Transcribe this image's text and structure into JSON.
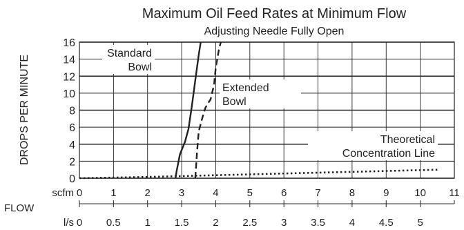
{
  "chart_data": {
    "type": "line",
    "title": "Maximum Oil Feed Rates at Minimum Flow",
    "subtitle": "Adjusting Needle Fully Open",
    "ylabel": "DROPS PER MINUTE",
    "xlabel": "FLOW",
    "ylim": [
      0,
      16
    ],
    "xlim": [
      0,
      11
    ],
    "y_ticks": [
      "0",
      "2",
      "4",
      "6",
      "8",
      "10",
      "12",
      "14",
      "16"
    ],
    "x_scfm_label": "scfm",
    "x_scfm_ticks": [
      "0",
      "1",
      "2",
      "3",
      "4",
      "5",
      "6",
      "7",
      "8",
      "9",
      "10",
      "11"
    ],
    "x_ls_label": "l/s",
    "x_ls_ticks": [
      "0",
      "0.5",
      "1",
      "1.5",
      "2",
      "2.5",
      "3",
      "3.5",
      "4",
      "4.5",
      "5"
    ],
    "grid": true,
    "series": [
      {
        "name": "Standard Bowl",
        "label_lines": [
          "Standard",
          "Bowl"
        ],
        "style": "solid",
        "color": "#222222",
        "points": [
          [
            2.82,
            0
          ],
          [
            2.85,
            0.8
          ],
          [
            2.95,
            2.8
          ],
          [
            3.1,
            4.3
          ],
          [
            3.2,
            5.8
          ],
          [
            3.3,
            8.5
          ],
          [
            3.4,
            11.5
          ],
          [
            3.5,
            14.5
          ],
          [
            3.56,
            16
          ]
        ]
      },
      {
        "name": "Extended Bowl",
        "label_lines": [
          "Extended",
          "Bowl"
        ],
        "style": "dashed",
        "color": "#222222",
        "points": [
          [
            3.4,
            0
          ],
          [
            3.45,
            3.0
          ],
          [
            3.5,
            5.5
          ],
          [
            3.6,
            7.0
          ],
          [
            3.7,
            8.3
          ],
          [
            3.85,
            9.3
          ],
          [
            3.95,
            11.0
          ],
          [
            4.0,
            13.0
          ],
          [
            4.1,
            15.3
          ],
          [
            4.15,
            16
          ]
        ]
      },
      {
        "name": "Theoretical Concentration Line",
        "label_lines": [
          "Theoretical",
          "Concentration Line"
        ],
        "style": "dotted",
        "color": "#222222",
        "points": [
          [
            0,
            0
          ],
          [
            2,
            0.15
          ],
          [
            4,
            0.35
          ],
          [
            6,
            0.55
          ],
          [
            8,
            0.75
          ],
          [
            10.5,
            1.0
          ]
        ]
      }
    ]
  }
}
